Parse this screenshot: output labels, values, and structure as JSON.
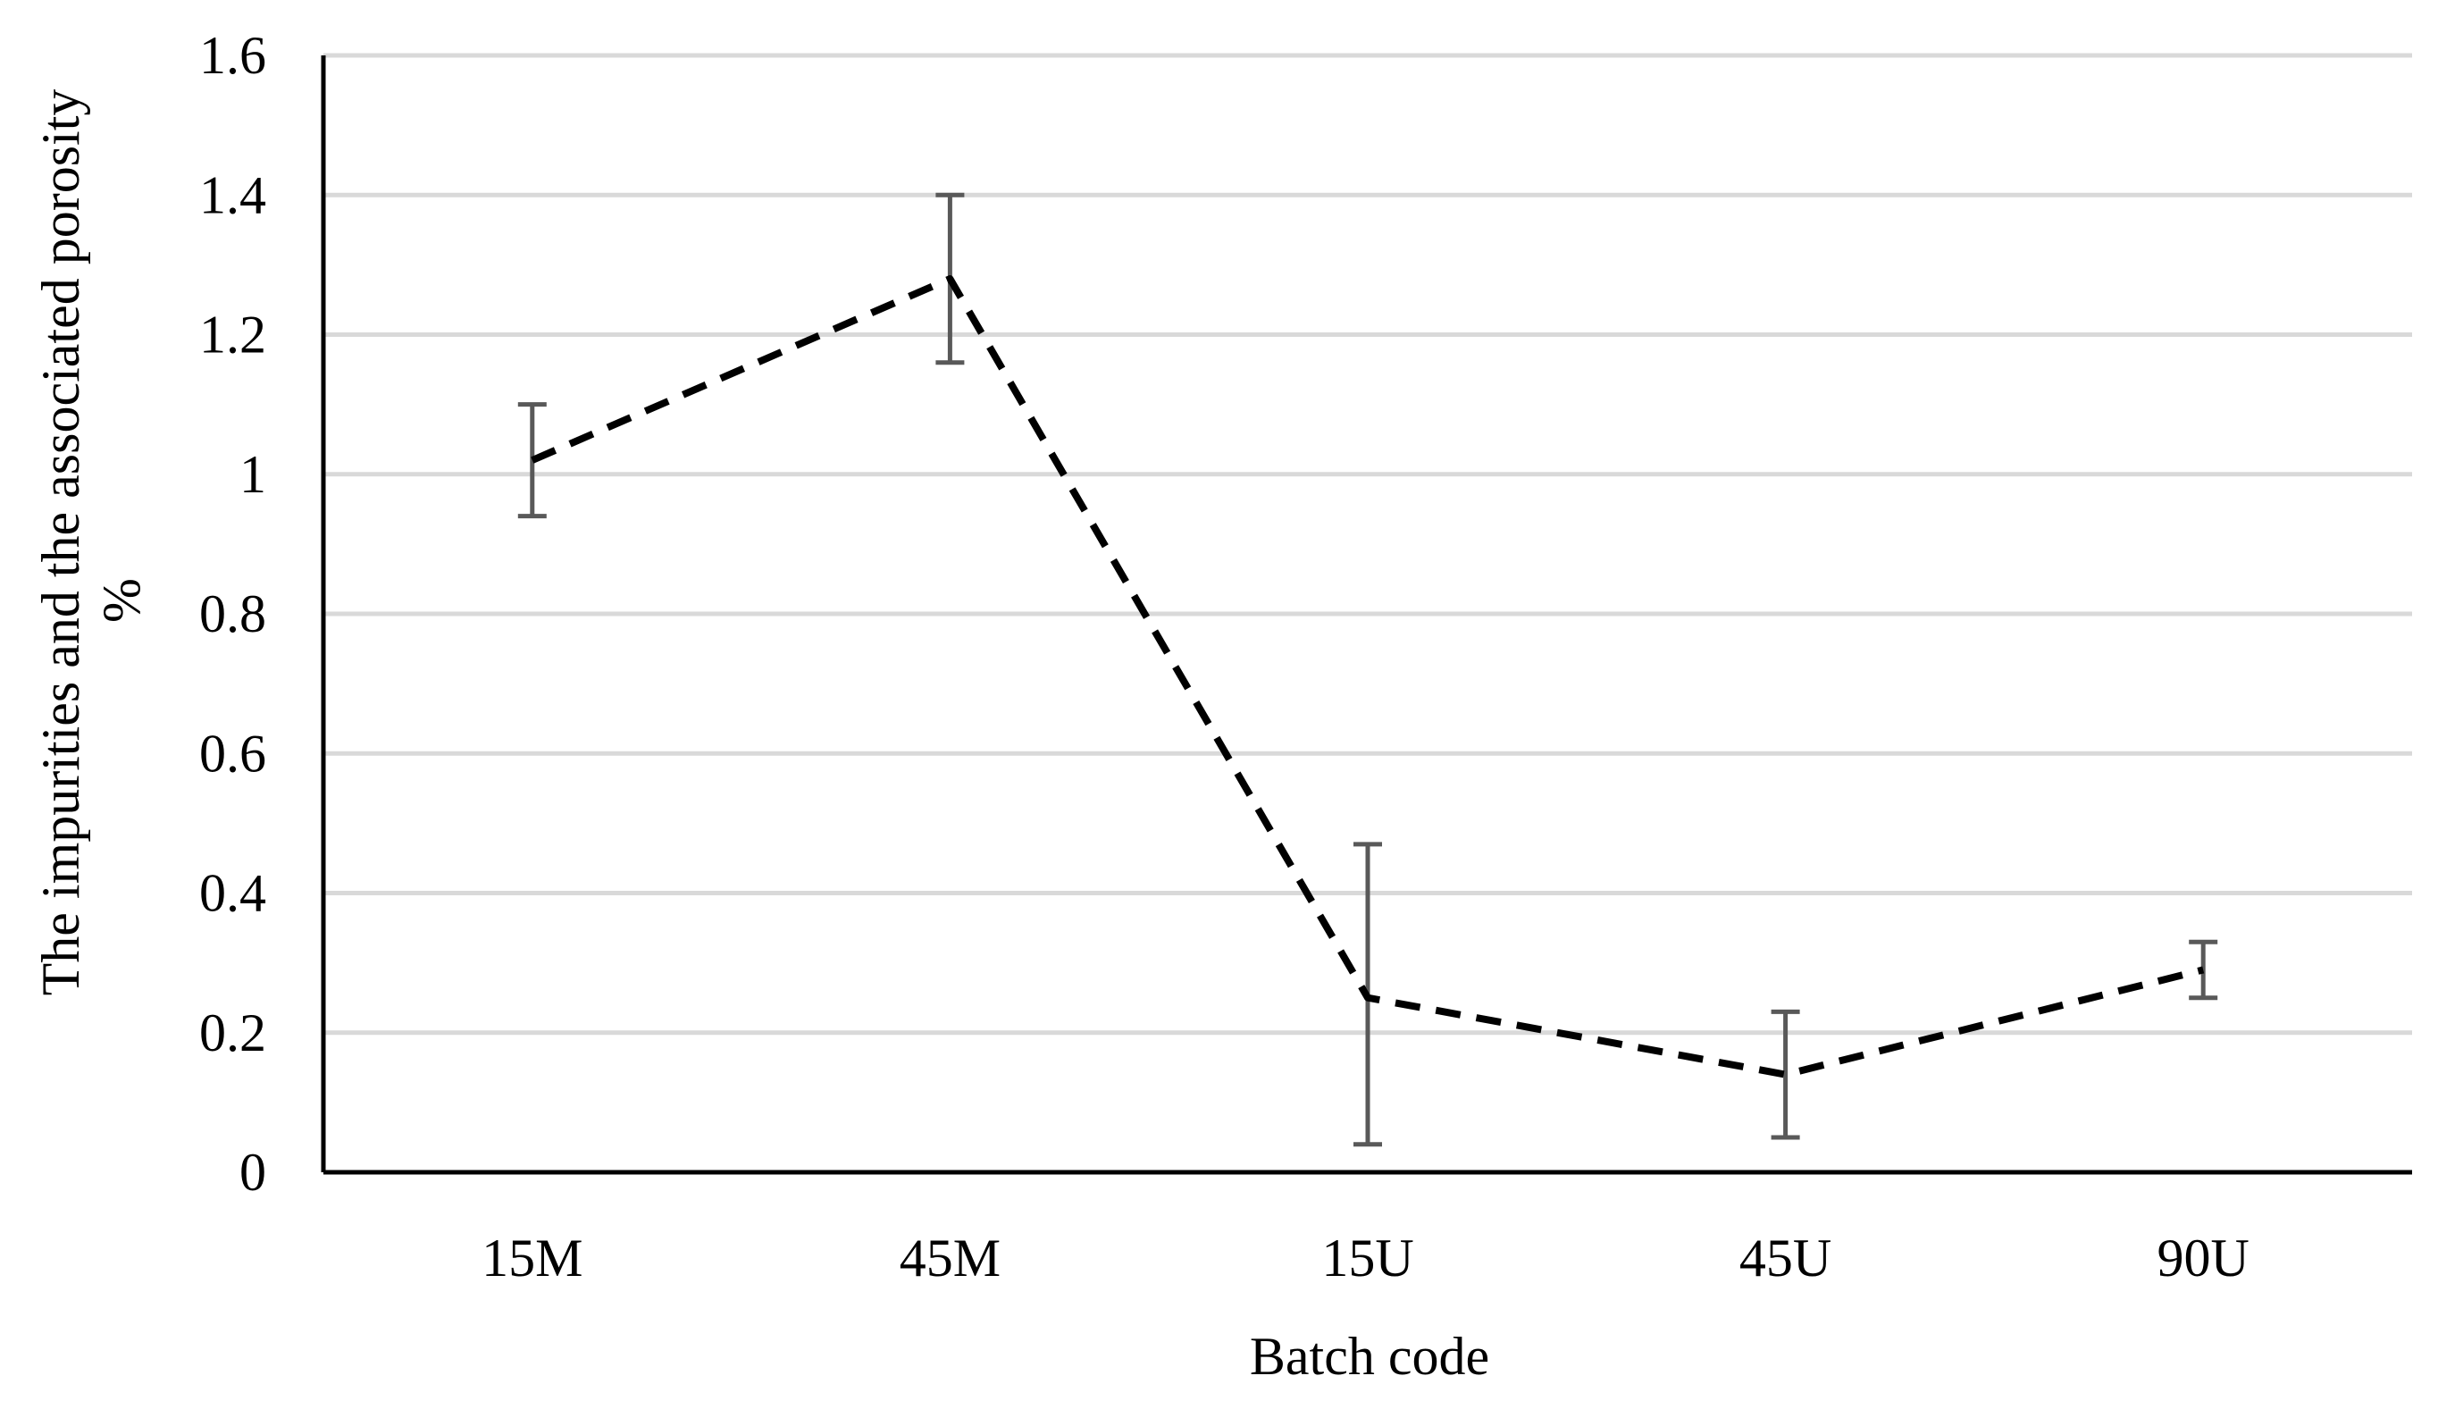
{
  "chart_data": {
    "type": "line",
    "title": "",
    "xlabel": "Batch code",
    "ylabel": [
      "The impurities and the associated porosity",
      "%"
    ],
    "categories": [
      "15M",
      "45M",
      "15U",
      "45U",
      "90U"
    ],
    "series": [
      {
        "values": [
          1.02,
          1.28,
          0.25,
          0.14,
          0.29
        ],
        "error_low": [
          0.94,
          1.16,
          0.04,
          0.05,
          0.25
        ],
        "error_high": [
          1.1,
          1.4,
          0.47,
          0.23,
          0.33
        ],
        "color": "#000000",
        "error_bar_color": "#595959",
        "line_style": "dashed"
      }
    ],
    "ylim": [
      0,
      1.6
    ],
    "y_ticks": [
      "0",
      "0.2",
      "0.4",
      "0.6",
      "0.8",
      "1",
      "1.2",
      "1.4",
      "1.6"
    ],
    "grid": "horizontal",
    "grid_color": "#d9d9d9",
    "legend": "none"
  }
}
